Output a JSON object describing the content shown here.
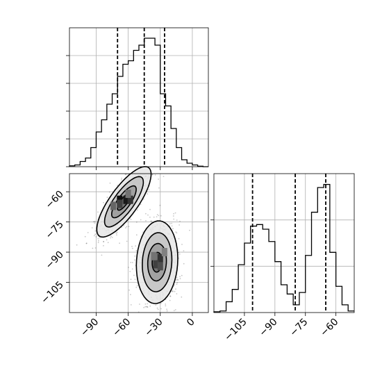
{
  "chart_data": [
    {
      "type": "histogram",
      "panel": "top-left",
      "x_range": [
        -115,
        15
      ],
      "grid": true,
      "step_x": [
        -115,
        -110,
        -105,
        -100,
        -95,
        -90,
        -85,
        -80,
        -75,
        -70,
        -65,
        -60,
        -55,
        -50,
        -45,
        -40,
        -35,
        -30,
        -25,
        -20,
        -15,
        -10,
        -5,
        0,
        5,
        10,
        15
      ],
      "counts": [
        0.5,
        1,
        3,
        5,
        11,
        20,
        27,
        36,
        42,
        52,
        59,
        61,
        67,
        70,
        74,
        74,
        70,
        42,
        35,
        22,
        11,
        4,
        2,
        1,
        0.3,
        0
      ],
      "count_max": 80,
      "quantile_lines": [
        -70,
        -45,
        -26
      ]
    },
    {
      "type": "histogram",
      "panel": "bottom-right",
      "x_range": [
        -120,
        -51
      ],
      "grid": true,
      "step_x": [
        -120,
        -117,
        -114,
        -111,
        -108,
        -105,
        -102,
        -99,
        -96,
        -93,
        -90,
        -87,
        -84,
        -81,
        -78,
        -75,
        -72,
        -69,
        -66,
        -63,
        -60,
        -57,
        -54,
        -51
      ],
      "counts": [
        0.5,
        1,
        7,
        15,
        31,
        45,
        56,
        57,
        54,
        46,
        33,
        18,
        12,
        5,
        13,
        37,
        65,
        81,
        83,
        39,
        17,
        5,
        1
      ],
      "count_max": 90,
      "quantile_lines": [
        -101,
        -80,
        -65
      ],
      "xticks": [
        -105,
        -90,
        -75,
        -60
      ],
      "xtick_labels": [
        "−105",
        "−90",
        "−75",
        "−60"
      ]
    },
    {
      "type": "heatmap",
      "panel": "bottom-left",
      "x_range": [
        -115,
        15
      ],
      "y_range": [
        -120,
        -51
      ],
      "grid": true,
      "xticks": [
        -90,
        -60,
        -30,
        0
      ],
      "xtick_labels": [
        "−90",
        "−60",
        "−30",
        "0"
      ],
      "yticks": [
        -105,
        -90,
        -75,
        -60
      ],
      "ytick_labels": [
        "−105",
        "−90",
        "−75",
        "−60"
      ],
      "clusters": [
        {
          "center": [
            -64,
            -65
          ],
          "spread": [
            14,
            4.5
          ],
          "angle_deg": 32,
          "contour_scales": [
            2.1,
            1.5,
            0.95,
            0.5
          ]
        },
        {
          "center": [
            -33,
            -95
          ],
          "spread": [
            10,
            9
          ],
          "angle_deg": 62,
          "contour_scales": [
            2.1,
            1.5,
            0.95,
            0.5
          ]
        }
      ],
      "dense_cells": [
        {
          "x": -68,
          "y": -64,
          "level": 0.95
        },
        {
          "x": -62,
          "y": -64,
          "level": 0.9
        },
        {
          "x": -58,
          "y": -64,
          "level": 0.8
        },
        {
          "x": -68,
          "y": -66,
          "level": 0.75
        },
        {
          "x": -74,
          "y": -67,
          "level": 0.6
        },
        {
          "x": -60,
          "y": -61,
          "level": 0.55
        },
        {
          "x": -30,
          "y": -93,
          "level": 0.8
        },
        {
          "x": -34,
          "y": -96,
          "level": 0.75
        },
        {
          "x": -30,
          "y": -97,
          "level": 0.7
        },
        {
          "x": -36,
          "y": -92,
          "level": 0.55
        },
        {
          "x": -26,
          "y": -90,
          "level": 0.5
        }
      ]
    }
  ]
}
